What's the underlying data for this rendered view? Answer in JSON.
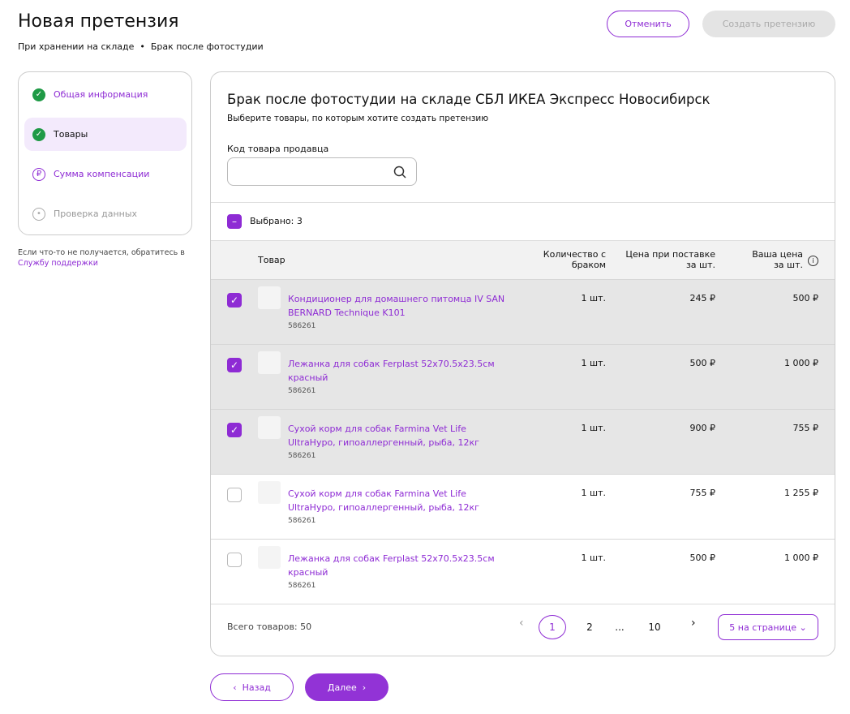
{
  "header": {
    "title": "Новая претензия",
    "breadcrumb": [
      "При хранении на складе",
      "Брак после фотостудии"
    ],
    "cancel": "Отменить",
    "create": "Создать претензию"
  },
  "steps": [
    {
      "label": "Общая информация",
      "state": "done"
    },
    {
      "label": "Товары",
      "state": "active"
    },
    {
      "label": "Сумма компенсации",
      "state": "todo"
    },
    {
      "label": "Проверка данных",
      "state": "disabled"
    }
  ],
  "help": {
    "text": "Если что-то не получается, обратитесь в",
    "link": "Службу поддержки"
  },
  "panel": {
    "title": "Брак после фотостудии на складе СБЛ ИКЕА Экспресс Новосибирск",
    "subtitle": "Выберите товары, по которым хотите создать претензию",
    "search_label": "Код товара продавца",
    "selected": "Выбрано: 3"
  },
  "table": {
    "columns": [
      "Товар",
      "Количество с браком",
      "Цена при поставке за шт.",
      "Ваша цена за шт."
    ],
    "rows": [
      {
        "name": "Кондиционер для домашнего питомца IV SAN BERNARD Technique K101",
        "sku": "586261",
        "qty": "1 шт.",
        "price": "245 ₽",
        "your_price": "500 ₽",
        "selected": true
      },
      {
        "name": "Лежанка для собак Ferplast 52x70.5x23.5см красный",
        "sku": "586261",
        "qty": "1 шт.",
        "price": "500 ₽",
        "your_price": "1 000 ₽",
        "selected": true
      },
      {
        "name": "Сухой корм для собак Farmina Vet Life UltraHypo, гипоаллергенный, рыба, 12кг",
        "sku": "586261",
        "qty": "1 шт.",
        "price": "900 ₽",
        "your_price": "755 ₽",
        "selected": true
      },
      {
        "name": "Сухой корм для собак Farmina Vet Life UltraHypo, гипоаллергенный, рыба, 12кг",
        "sku": "586261",
        "qty": "1 шт.",
        "price": "755 ₽",
        "your_price": "1 255 ₽",
        "selected": false
      },
      {
        "name": "Лежанка для собак Ferplast 52x70.5x23.5см красный",
        "sku": "586261",
        "qty": "1 шт.",
        "price": "500 ₽",
        "your_price": "1 000 ₽",
        "selected": false
      }
    ]
  },
  "footer": {
    "total": "Всего товаров: 50",
    "pages": [
      {
        "label": "1",
        "current": true
      },
      {
        "label": "2",
        "current": false
      },
      {
        "label": "...",
        "current": false
      },
      {
        "label": "10",
        "current": false
      }
    ],
    "per_page": "5 на странице"
  },
  "nav": {
    "back": "Назад",
    "next": "Далее"
  }
}
